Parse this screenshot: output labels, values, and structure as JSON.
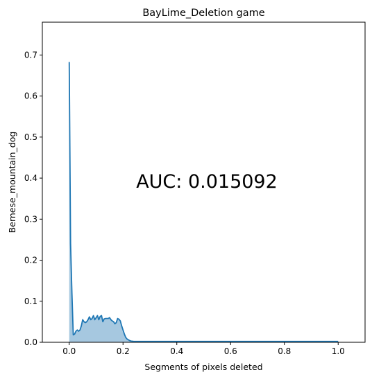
{
  "chart_data": {
    "type": "area",
    "title": "BayLime_Deletion game",
    "xlabel": "Segments of pixels deleted",
    "ylabel": "Bernese_mountain_dog",
    "xlim": [
      -0.1,
      1.1
    ],
    "ylim": [
      0.0,
      0.78
    ],
    "x_ticks": [
      "0.0",
      "0.2",
      "0.4",
      "0.6",
      "0.8",
      "1.0"
    ],
    "y_ticks": [
      "0.0",
      "0.1",
      "0.2",
      "0.3",
      "0.4",
      "0.5",
      "0.6",
      "0.7"
    ],
    "annotation": "AUC: 0.015092",
    "line_color": "#1f77b4",
    "fill_color": "#a6c8e0",
    "grid": false,
    "series": [
      {
        "x": [
          0.0,
          0.005,
          0.01,
          0.015,
          0.02,
          0.025,
          0.03,
          0.035,
          0.04,
          0.045,
          0.05,
          0.055,
          0.06,
          0.065,
          0.07,
          0.075,
          0.08,
          0.085,
          0.09,
          0.095,
          0.1,
          0.105,
          0.11,
          0.115,
          0.12,
          0.125,
          0.13,
          0.135,
          0.14,
          0.145,
          0.15,
          0.155,
          0.16,
          0.165,
          0.17,
          0.175,
          0.18,
          0.185,
          0.19,
          0.195,
          0.2,
          0.205,
          0.21,
          0.215,
          0.22,
          0.225,
          0.23,
          0.24,
          0.25,
          0.26,
          0.28,
          0.3,
          0.35,
          0.4,
          0.45,
          0.5,
          0.55,
          0.6,
          0.65,
          0.7,
          0.75,
          0.8,
          0.85,
          0.9,
          0.95,
          1.0
        ],
        "values": [
          0.683,
          0.24,
          0.12,
          0.018,
          0.02,
          0.027,
          0.03,
          0.027,
          0.03,
          0.04,
          0.055,
          0.05,
          0.048,
          0.05,
          0.055,
          0.062,
          0.055,
          0.058,
          0.065,
          0.055,
          0.06,
          0.065,
          0.055,
          0.063,
          0.065,
          0.05,
          0.057,
          0.058,
          0.058,
          0.058,
          0.06,
          0.055,
          0.052,
          0.05,
          0.045,
          0.048,
          0.058,
          0.056,
          0.052,
          0.04,
          0.03,
          0.02,
          0.012,
          0.008,
          0.006,
          0.004,
          0.003,
          0.002,
          0.002,
          0.002,
          0.002,
          0.002,
          0.002,
          0.002,
          0.002,
          0.002,
          0.002,
          0.002,
          0.002,
          0.002,
          0.002,
          0.002,
          0.002,
          0.002,
          0.002,
          0.002
        ]
      }
    ]
  }
}
